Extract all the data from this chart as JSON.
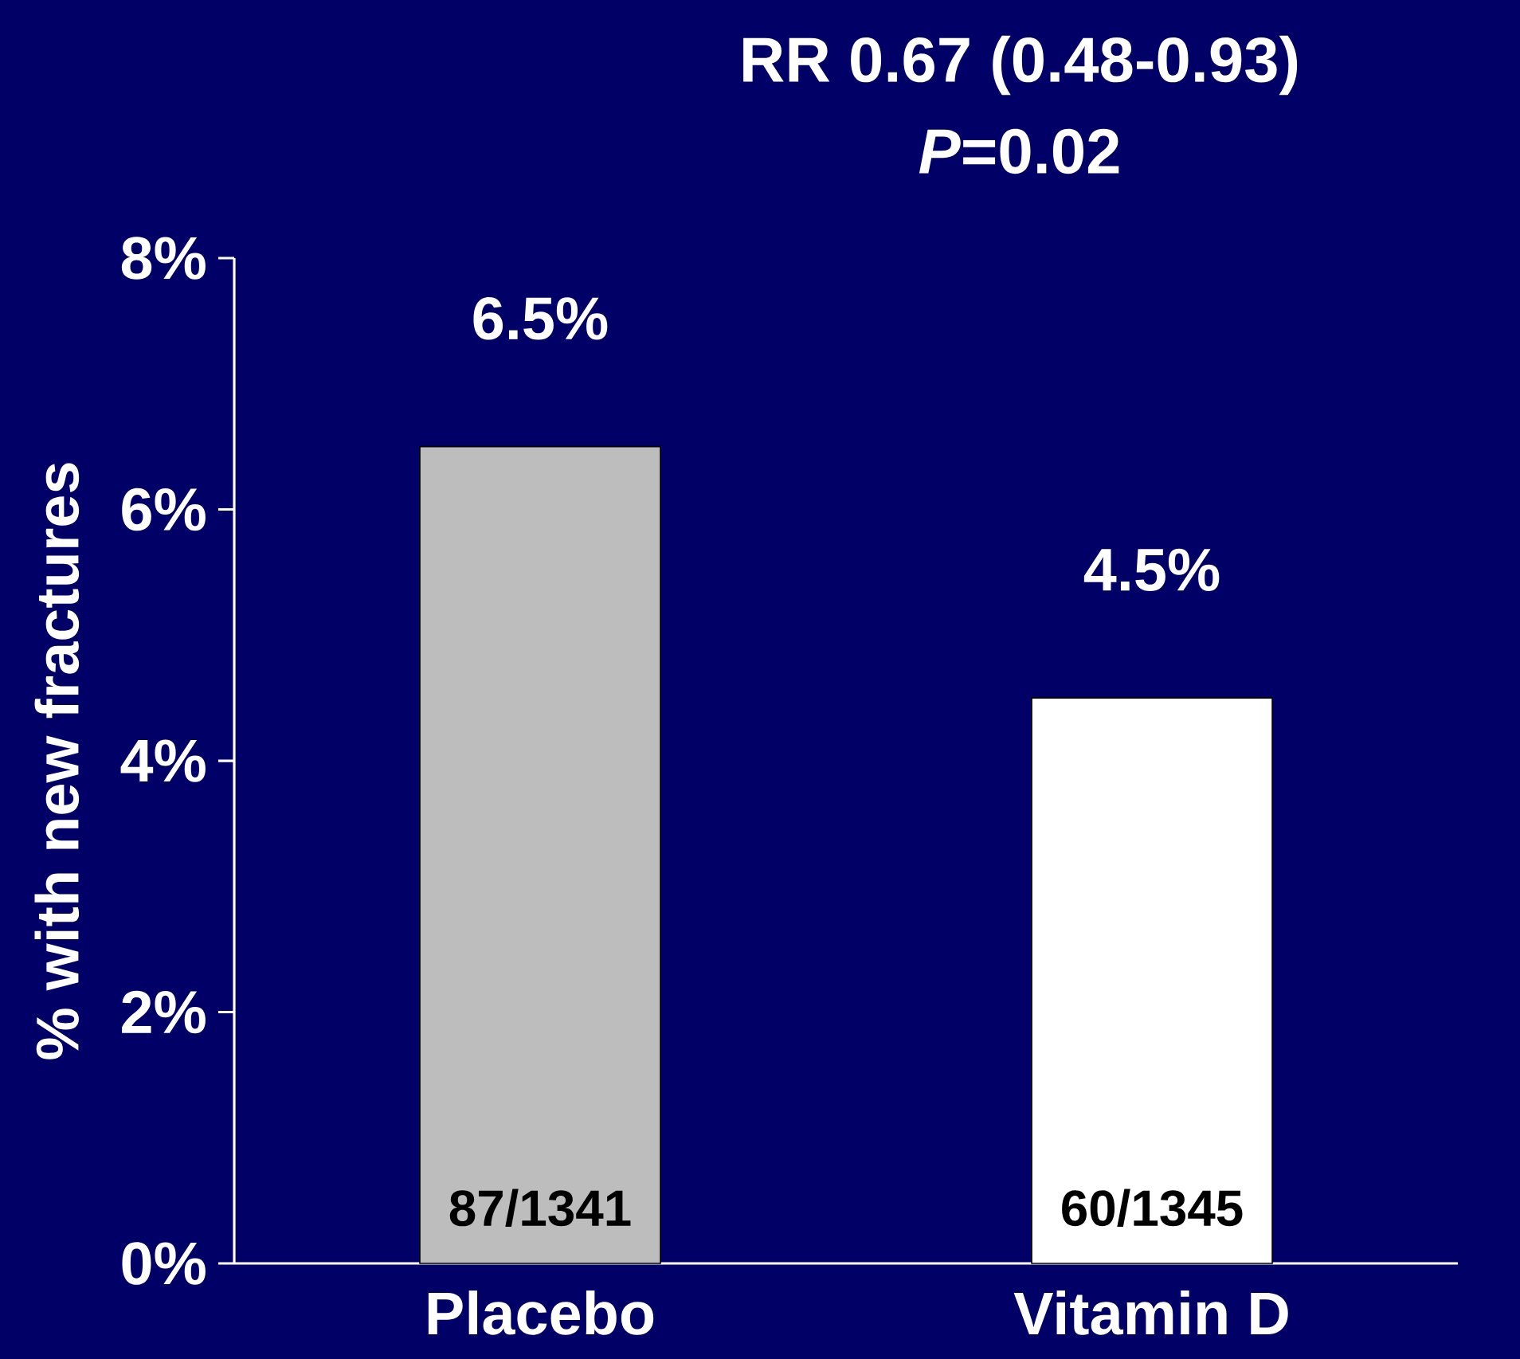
{
  "chart_data": {
    "type": "bar",
    "title": "RR 0.67 (0.48-0.93)",
    "subtitle": "*P*=0.02",
    "ylabel": "% with new fractures",
    "categories": [
      "Placebo",
      "Vitamin D"
    ],
    "values": [
      6.5,
      4.5
    ],
    "colors": [
      "#bdbdbd",
      "#ffffff"
    ],
    "value_labels": [
      "6.5%",
      "4.5%"
    ],
    "annotations": [
      "87/1341",
      "60/1345"
    ],
    "ylim": [
      0,
      8
    ],
    "yticks": [
      {
        "value": 0,
        "label": "0%"
      },
      {
        "value": 2,
        "label": "2%"
      },
      {
        "value": 4,
        "label": "4%"
      },
      {
        "value": 6,
        "label": "6%"
      },
      {
        "value": 8,
        "label": "8%"
      }
    ],
    "grid": false
  }
}
